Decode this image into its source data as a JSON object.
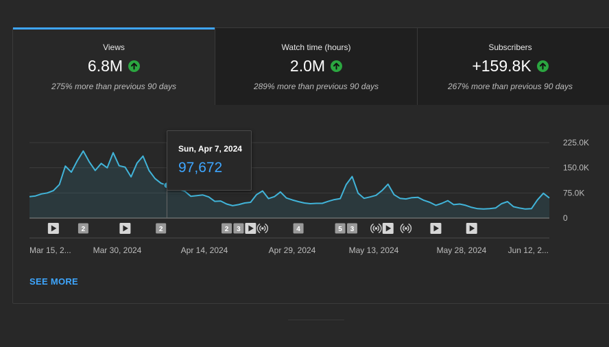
{
  "colors": {
    "accent": "#3ea6ff",
    "line": "#41b4d9",
    "up": "#2ba640"
  },
  "tabs": [
    {
      "label": "Views",
      "value": "6.8M",
      "change": "275% more than previous 90 days",
      "active": true
    },
    {
      "label": "Watch time (hours)",
      "value": "2.0M",
      "change": "289% more than previous 90 days",
      "active": false
    },
    {
      "label": "Subscribers",
      "value": "+159.8K",
      "change": "267% more than previous 90 days",
      "active": false
    }
  ],
  "tooltip": {
    "date": "Sun, Apr 7, 2024",
    "value": "97,672"
  },
  "see_more": "SEE MORE",
  "chart_data": {
    "type": "area",
    "title": "Views",
    "ylabel": "",
    "xlabel": "",
    "ylim": [
      0,
      225000
    ],
    "y_ticks": [
      "225.0K",
      "150.0K",
      "75.0K",
      "0"
    ],
    "x_tick_labels": [
      "Mar 15, 2...",
      "Mar 30, 2024",
      "Apr 14, 2024",
      "Apr 29, 2024",
      "May 13, 2024",
      "May 28, 2024",
      "Jun 12, 2..."
    ],
    "series": [
      {
        "name": "Views",
        "values": [
          64000,
          66000,
          72000,
          75000,
          82000,
          100000,
          155000,
          137000,
          171000,
          200000,
          168000,
          142000,
          163000,
          150000,
          195000,
          156000,
          152000,
          123000,
          164000,
          185000,
          142000,
          118000,
          104000,
          97672,
          92000,
          86000,
          80000,
          65000,
          67000,
          69000,
          63000,
          50000,
          51000,
          42000,
          37000,
          40000,
          45000,
          47000,
          70000,
          81000,
          58000,
          64000,
          78000,
          60000,
          54000,
          49000,
          45000,
          43000,
          44000,
          44000,
          50000,
          55000,
          58000,
          100000,
          124000,
          74000,
          59000,
          63000,
          68000,
          82000,
          101000,
          70000,
          59000,
          57000,
          61000,
          62000,
          53000,
          47000,
          38000,
          44000,
          52000,
          40000,
          42000,
          38000,
          32000,
          28000,
          27000,
          28000,
          30000,
          43000,
          49000,
          34000,
          30000,
          27000,
          28000,
          54000,
          74000,
          60000
        ]
      }
    ],
    "hover_index": 23,
    "markers": [
      {
        "index": 4,
        "kind": "video"
      },
      {
        "index": 9,
        "kind": "count",
        "label": "2"
      },
      {
        "index": 16,
        "kind": "video"
      },
      {
        "index": 22,
        "kind": "count",
        "label": "2"
      },
      {
        "index": 33,
        "kind": "count",
        "label": "2"
      },
      {
        "index": 35,
        "kind": "count",
        "label": "3"
      },
      {
        "index": 37,
        "kind": "video"
      },
      {
        "index": 39,
        "kind": "live"
      },
      {
        "index": 45,
        "kind": "count",
        "label": "4"
      },
      {
        "index": 52,
        "kind": "count",
        "label": "5"
      },
      {
        "index": 54,
        "kind": "count",
        "label": "3"
      },
      {
        "index": 58,
        "kind": "live"
      },
      {
        "index": 60,
        "kind": "video"
      },
      {
        "index": 63,
        "kind": "live"
      },
      {
        "index": 68,
        "kind": "video"
      },
      {
        "index": 74,
        "kind": "video"
      }
    ]
  }
}
